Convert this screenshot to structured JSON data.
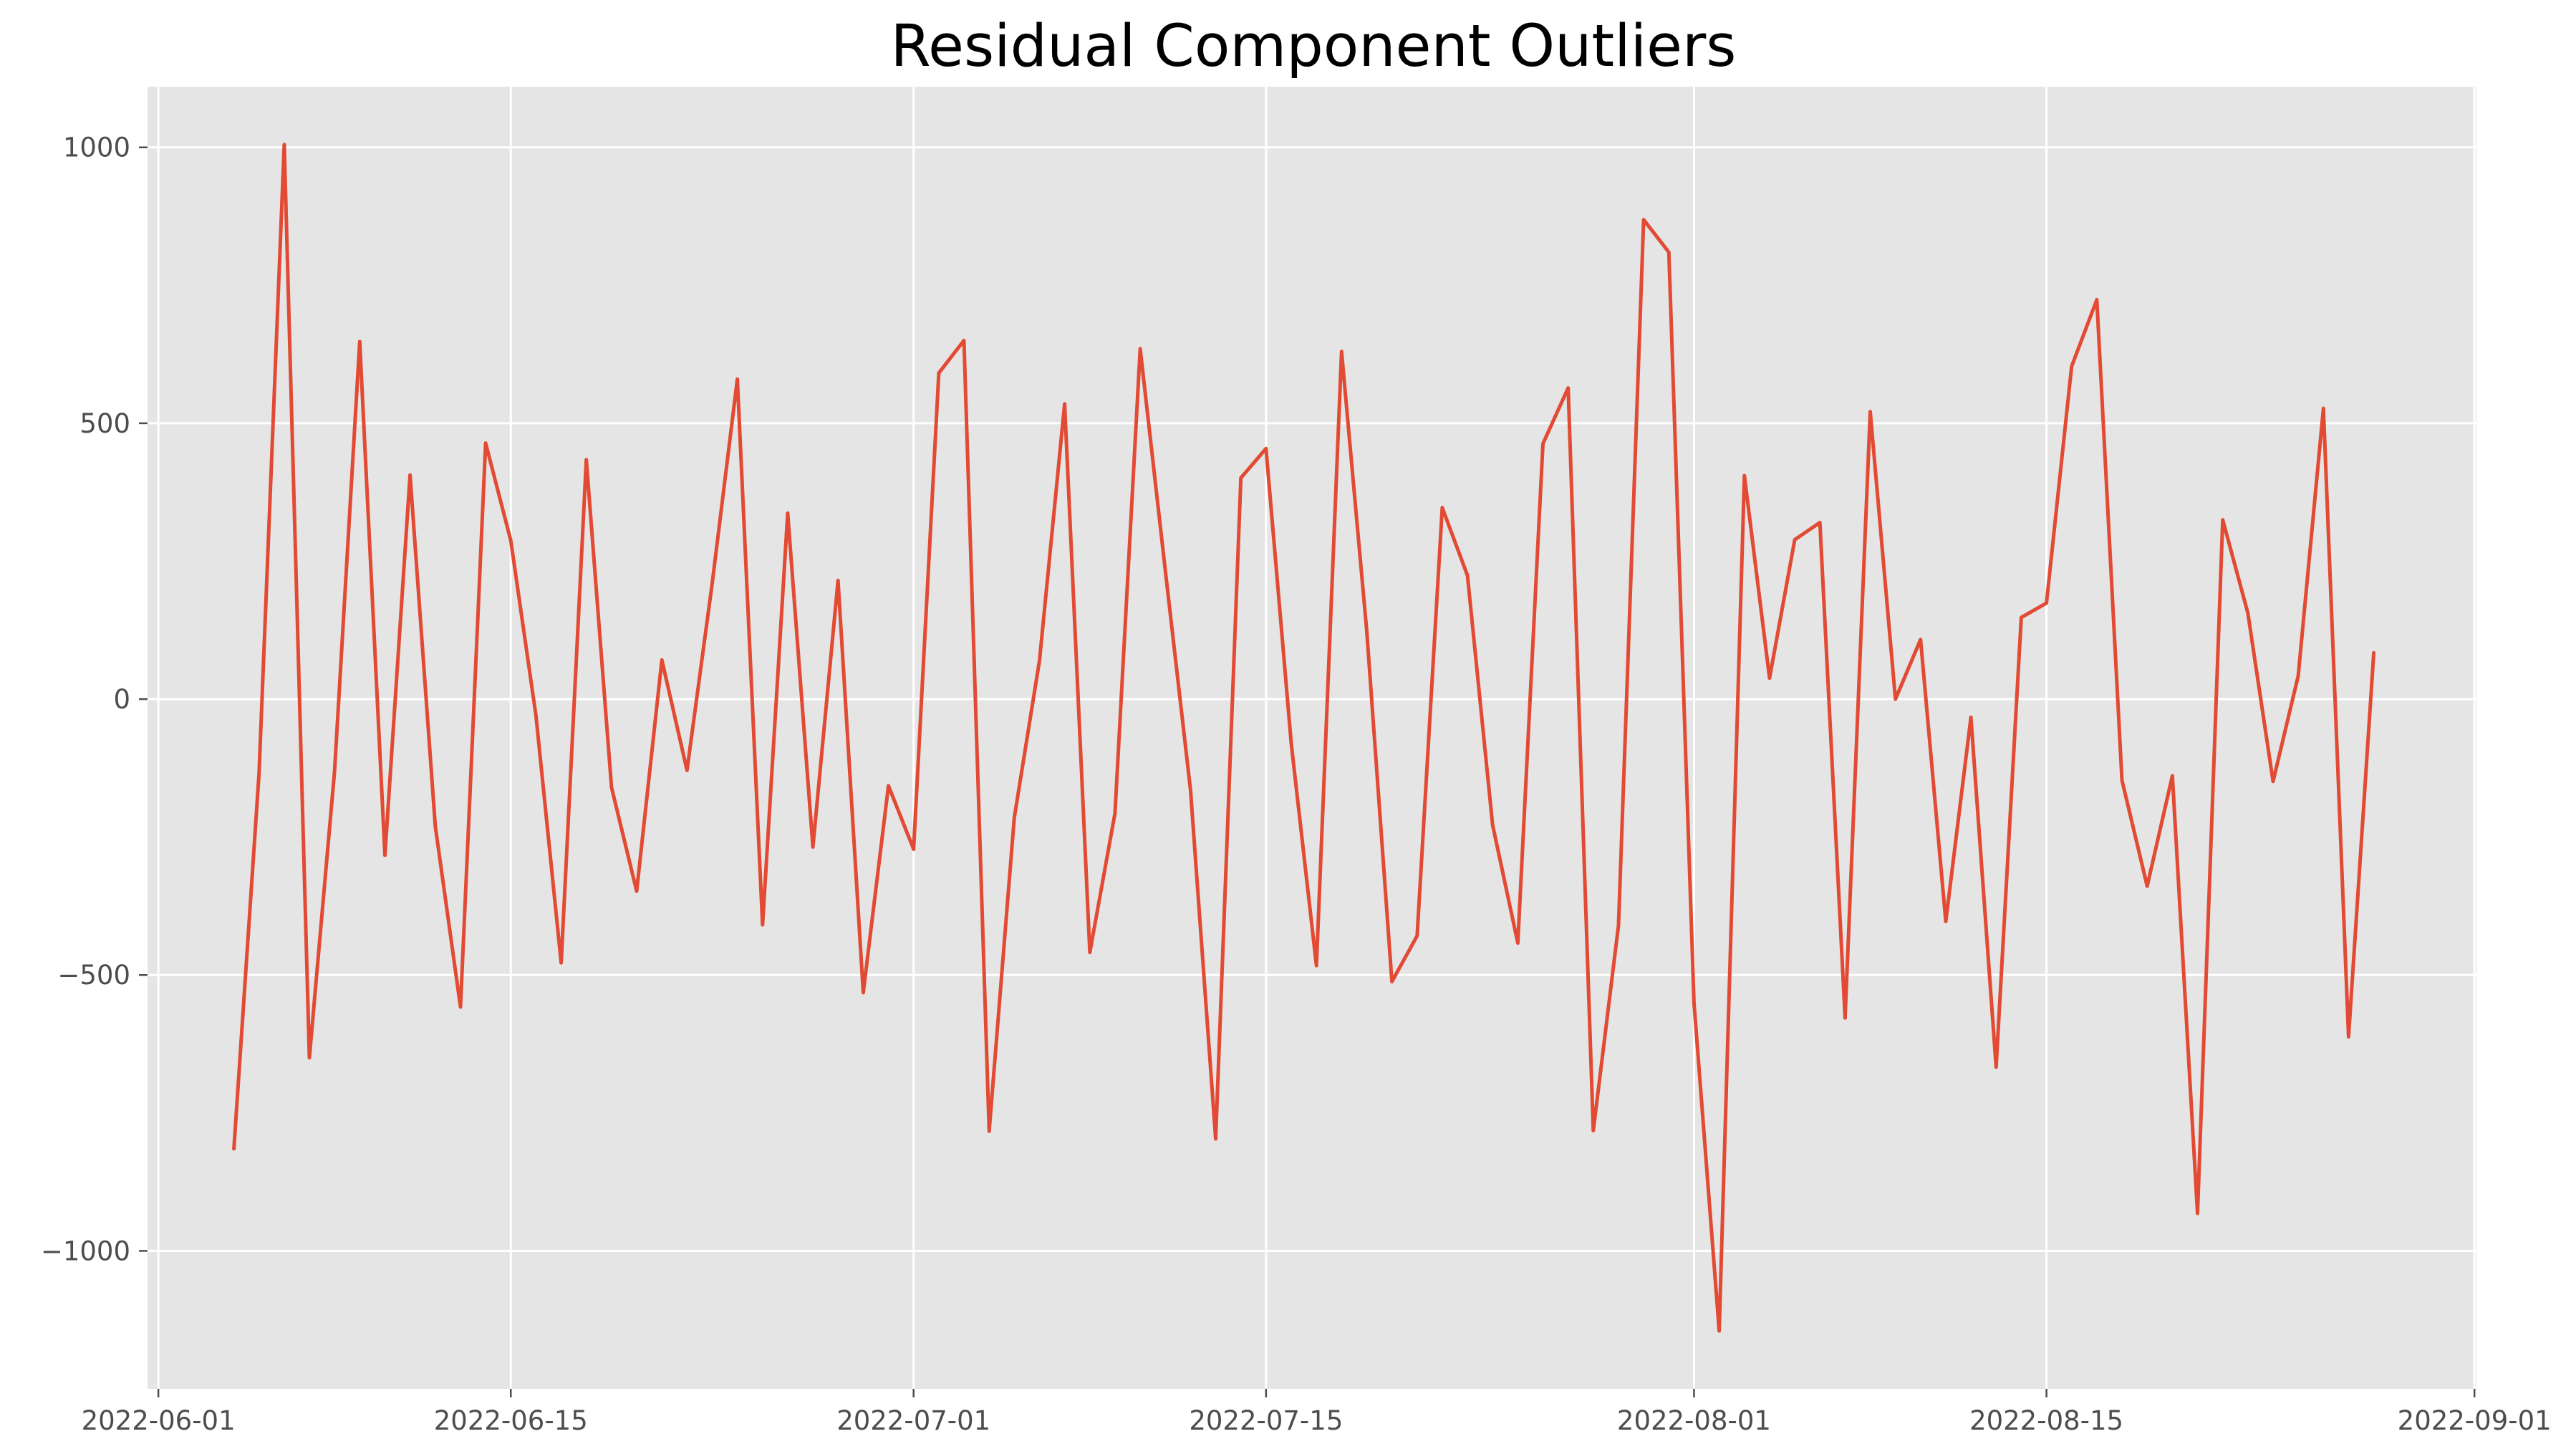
{
  "chart_data": {
    "type": "line",
    "title": "Residual Component Outliers",
    "xlabel": "",
    "ylabel": "",
    "grid": true,
    "style": "ggplot",
    "colors": {
      "background": "#e5e5e5",
      "grid": "#ffffff",
      "line": "#e24a33",
      "tick_label": "#4d4d4d"
    },
    "xlim": [
      "2022-06-01",
      "2022-09-01"
    ],
    "ylim": [
      -1250,
      1110
    ],
    "x_ticks": [
      "2022-06-01",
      "2022-06-15",
      "2022-07-01",
      "2022-07-15",
      "2022-08-01",
      "2022-08-15",
      "2022-09-01"
    ],
    "y_ticks": [
      1000,
      500,
      0,
      -500,
      -1000
    ],
    "y_tick_labels": [
      "1000",
      "500",
      "0",
      "−500",
      "−1000"
    ],
    "series": [
      {
        "start_date": "2022-06-04",
        "step_days": 1,
        "values": [
          -815,
          -135,
          1005,
          -650,
          -130,
          648,
          -283,
          406,
          -230,
          -558,
          464,
          287,
          -30,
          -478,
          434,
          -160,
          -348,
          71,
          -129,
          210,
          580,
          -409,
          337,
          -268,
          215,
          -532,
          -157,
          -272,
          591,
          650,
          -783,
          -215,
          70,
          535,
          -459,
          -207,
          635,
          233,
          -165,
          -797,
          401,
          454,
          -80,
          -483,
          630,
          123,
          -512,
          -429,
          347,
          224,
          -228,
          -442,
          463,
          564,
          -782,
          -410,
          869,
          810,
          -550,
          -1145,
          405,
          38,
          289,
          320,
          -578,
          521,
          0,
          108,
          -403,
          -33,
          -667,
          148,
          174,
          603,
          724,
          -147,
          -339,
          -139,
          -932,
          325,
          156,
          -149,
          42,
          527,
          -612,
          84
        ]
      }
    ]
  }
}
